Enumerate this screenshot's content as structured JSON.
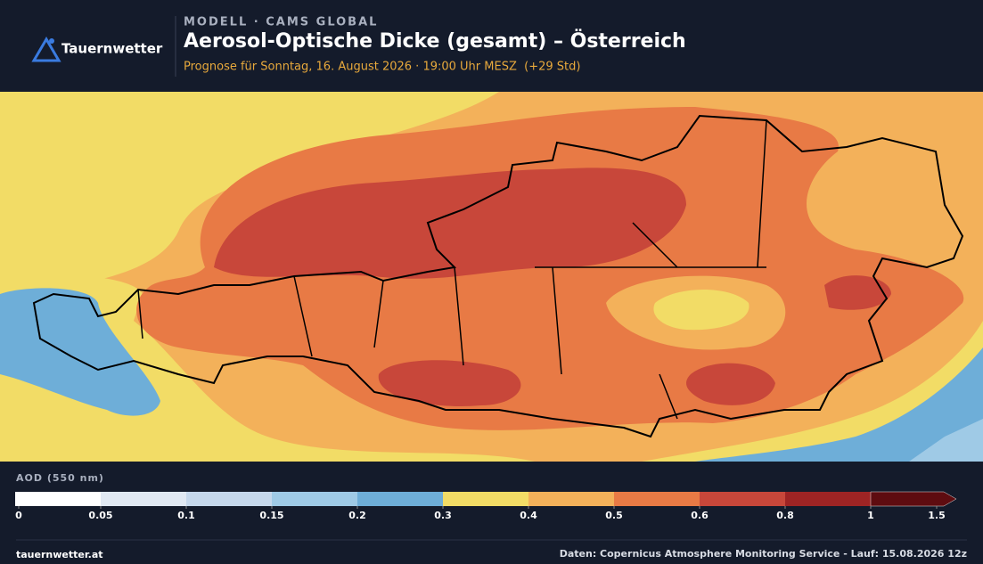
{
  "header": {
    "logo": "Tauernwetter",
    "kicker": "MODELL · CAMS GLOBAL",
    "title": "Aerosol-Optische Dicke (gesamt) – Österreich",
    "subtitle": "Prognose für Sonntag, 16. August 2026 · 19:00 Uhr MESZ  (+29 Std)"
  },
  "legend": {
    "label": "AOD (550 nm)",
    "ticks": [
      0,
      0.05,
      0.1,
      0.15,
      0.2,
      0.3,
      0.4,
      0.5,
      0.6,
      0.8,
      1,
      1.5
    ],
    "colors": [
      "#ffffff",
      "#e1e9f3",
      "#c6d8ec",
      "#9fcae6",
      "#6eaed8",
      "#f2dc66",
      "#f3b15a",
      "#e87a45",
      "#c8473a",
      "#9e2424",
      "#5e0c10"
    ]
  },
  "footer": {
    "left": "tauernwetter.at",
    "right": "Daten: Copernicus Atmosphere Monitoring Service - Lauf: 15.08.2026 12z"
  }
}
